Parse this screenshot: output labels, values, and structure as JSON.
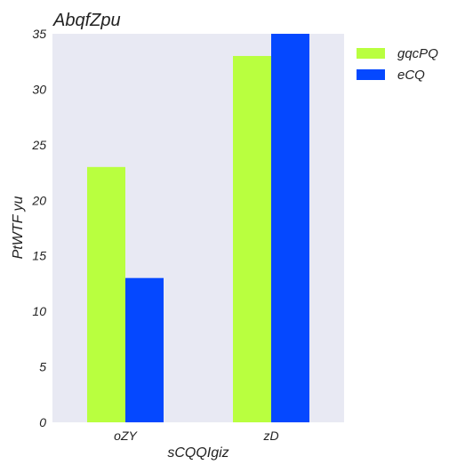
{
  "chart_data": {
    "type": "bar",
    "title": "AbqfZpu",
    "xlabel": "sCQQIgiz",
    "ylabel": "PtWTF yu",
    "categories": [
      "oZY",
      "zD"
    ],
    "series": [
      {
        "name": "gqcPQ",
        "values": [
          23,
          33
        ],
        "color": "#b9ff3f"
      },
      {
        "name": "eCQ",
        "values": [
          13,
          35
        ],
        "color": "#0548ff"
      }
    ],
    "ylim": [
      0,
      35
    ],
    "yticks": [
      0,
      5,
      10,
      15,
      20,
      25,
      30,
      35
    ],
    "grid": false,
    "legend_position": "right",
    "plot_background": "#e8e9f3"
  }
}
